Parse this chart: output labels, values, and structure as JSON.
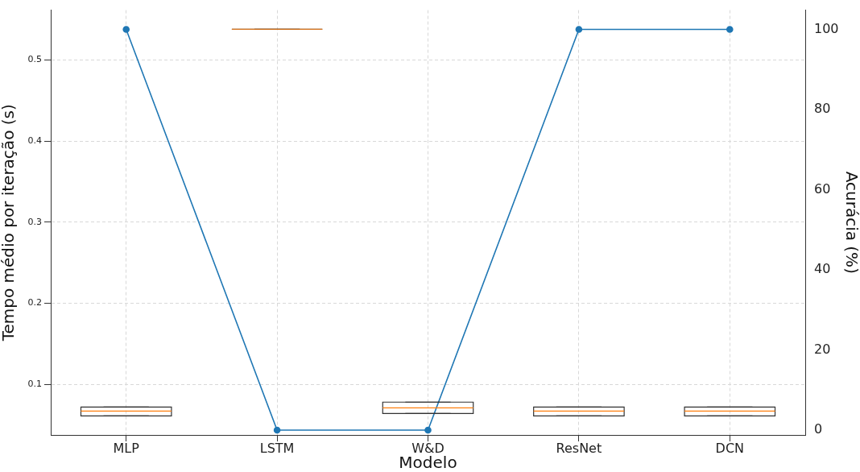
{
  "chart_data": {
    "type": "box",
    "xlabel": "Modelo",
    "ylabel": "Tempo médio por iteração (s)",
    "y2label": "Acurácia (%)",
    "categories": [
      "MLP",
      "LSTM",
      "W&D",
      "ResNet",
      "DCN"
    ],
    "series": [
      {
        "color": "#333333",
        "boxes": [
          {
            "low": 0.061,
            "q1": 0.061,
            "median": 0.067,
            "q3": 0.072,
            "high": 0.072
          },
          {
            "low": 0.538,
            "q1": 0.538,
            "median": 0.538,
            "q3": 0.538,
            "high": 0.538
          },
          {
            "low": 0.064,
            "q1": 0.064,
            "median": 0.071,
            "q3": 0.078,
            "high": 0.078
          },
          {
            "low": 0.061,
            "q1": 0.061,
            "median": 0.067,
            "q3": 0.072,
            "high": 0.072
          },
          {
            "low": 0.061,
            "q1": 0.061,
            "median": 0.067,
            "q3": 0.072,
            "high": 0.072
          }
        ]
      },
      {
        "type": "line",
        "axis": "y2",
        "color": "#1f77b4",
        "values": [
          100,
          0,
          0,
          100,
          100
        ]
      }
    ],
    "ylim": [
      0.0375,
      0.5615
    ],
    "yticks": [
      0.1,
      0.2,
      0.3,
      0.4,
      0.5
    ],
    "y2lim": [
      -1.2,
      104.8
    ],
    "y2ticks": [
      0,
      20,
      40,
      60,
      80,
      100
    ],
    "grid": true,
    "legend": false,
    "marker": "circle",
    "line_style": "solid"
  }
}
